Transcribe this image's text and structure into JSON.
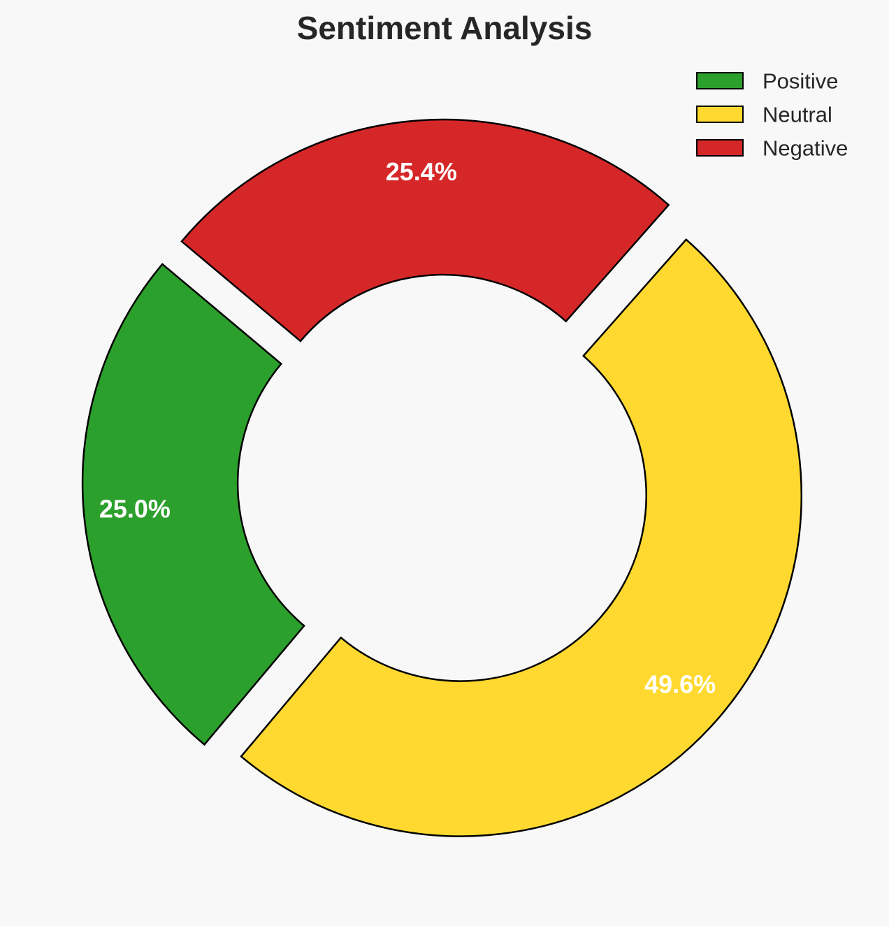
{
  "chart_data": {
    "type": "pie",
    "variant": "donut",
    "title": "Sentiment Analysis",
    "categories": [
      "Positive",
      "Neutral",
      "Negative"
    ],
    "values": [
      25.0,
      49.6,
      25.4
    ],
    "labels": [
      "25.0%",
      "49.6%",
      "25.4%"
    ],
    "colors": [
      "#2ca02c",
      "#ffd92f",
      "#d62728"
    ],
    "edge_color": "#000000",
    "background": "#f8f8f8",
    "exploded": true,
    "legend": {
      "placement": "top-right",
      "entries": [
        "Positive",
        "Neutral",
        "Negative"
      ]
    }
  }
}
